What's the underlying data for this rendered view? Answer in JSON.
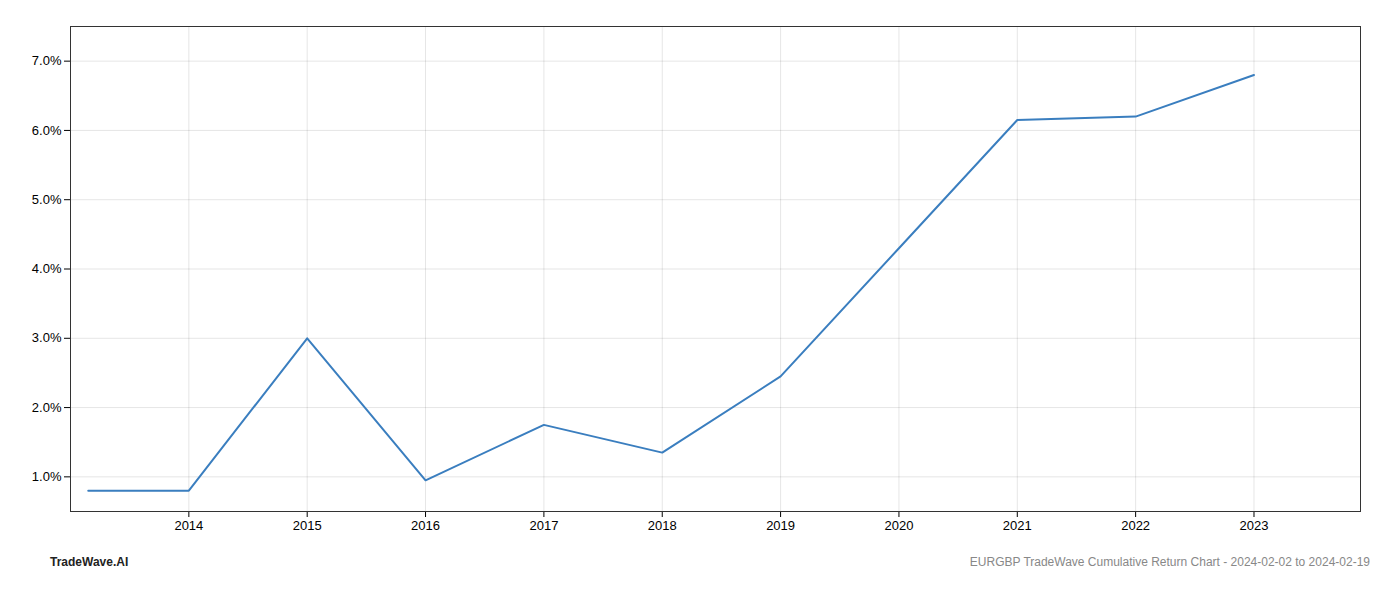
{
  "chart_data": {
    "type": "line",
    "x": [
      2013.15,
      2014.0,
      2015.0,
      2016.0,
      2017.0,
      2018.0,
      2019.0,
      2020.0,
      2021.0,
      2022.0,
      2023.0
    ],
    "values": [
      0.008,
      0.008,
      0.03,
      0.0095,
      0.0175,
      0.0135,
      0.0245,
      0.043,
      0.0615,
      0.062,
      0.068
    ],
    "color": "#3a7ebf",
    "xlim": [
      2013.0,
      2023.9
    ],
    "ylim": [
      0.005,
      0.075
    ],
    "xticks": [
      2014,
      2015,
      2016,
      2017,
      2018,
      2019,
      2020,
      2021,
      2022,
      2023
    ],
    "yticks": [
      {
        "value": 0.01,
        "label": "1.0%"
      },
      {
        "value": 0.02,
        "label": "2.0%"
      },
      {
        "value": 0.03,
        "label": "3.0%"
      },
      {
        "value": 0.04,
        "label": "4.0%"
      },
      {
        "value": 0.05,
        "label": "5.0%"
      },
      {
        "value": 0.06,
        "label": "6.0%"
      },
      {
        "value": 0.07,
        "label": "7.0%"
      }
    ],
    "grid": true,
    "annotations": [
      "TradeWave.AI",
      "EURGBP TradeWave Cumulative Return Chart - 2024-02-02 to 2024-02-19"
    ]
  }
}
